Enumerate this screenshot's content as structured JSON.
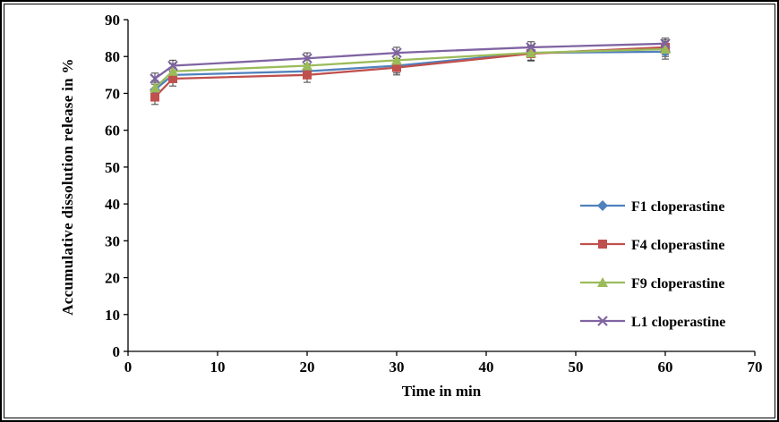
{
  "chart_data": {
    "type": "line",
    "title": "",
    "xlabel": "Time in min",
    "ylabel": "Accumulative dissolution release in %",
    "xlim": [
      0,
      70
    ],
    "ylim": [
      0,
      90
    ],
    "xticks": [
      0,
      10,
      20,
      30,
      40,
      50,
      60,
      70
    ],
    "yticks": [
      0,
      10,
      20,
      30,
      40,
      50,
      60,
      70,
      80,
      90
    ],
    "grid": false,
    "legend_position": "right-inside",
    "x": [
      3,
      5,
      20,
      30,
      45,
      60
    ],
    "series": [
      {
        "name": "F1 cloperastine",
        "marker": "diamond",
        "color": "#4F81BD",
        "values": [
          71,
          75,
          76,
          77.5,
          81,
          81.3
        ],
        "yerr": 2
      },
      {
        "name": "F4 cloperastine",
        "marker": "square",
        "color": "#C0504D",
        "values": [
          69,
          74,
          75,
          77,
          80.8,
          82.5
        ],
        "yerr": 2
      },
      {
        "name": "F9 cloperastine",
        "marker": "triangle",
        "color": "#9BBB59",
        "values": [
          71.5,
          76,
          77.5,
          79,
          81,
          82
        ],
        "yerr": 2
      },
      {
        "name": "L1 cloperastine",
        "marker": "x",
        "color": "#8064A2",
        "values": [
          74,
          77.5,
          79.5,
          81,
          82.5,
          83.5
        ],
        "yerr": 1.5
      }
    ],
    "error_bar_color": "#404040",
    "axis_color": "#000000",
    "tick_font_size": 17,
    "legend_font_size": 16
  }
}
